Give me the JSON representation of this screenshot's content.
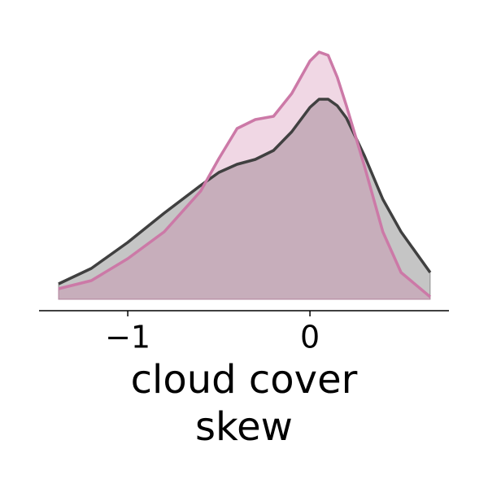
{
  "chart_data": {
    "type": "area",
    "x": [
      -1.38,
      -1.2,
      -1.0,
      -0.8,
      -0.6,
      -0.5,
      -0.4,
      -0.3,
      -0.2,
      -0.1,
      0,
      0.05,
      0.1,
      0.15,
      0.2,
      0.3,
      0.4,
      0.5,
      0.66
    ],
    "series": [
      {
        "color": "#404040",
        "fill": "#bfbfbf",
        "values": [
          0.076,
          0.152,
          0.28,
          0.424,
          0.56,
          0.624,
          0.664,
          0.688,
          0.732,
          0.824,
          0.944,
          0.984,
          0.984,
          0.952,
          0.892,
          0.704,
          0.492,
          0.332,
          0.132
        ]
      },
      {
        "color": "#cc79a7",
        "fill": "#cc79a7",
        "values": [
          0.052,
          0.092,
          0.2,
          0.332,
          0.532,
          0.692,
          0.84,
          0.884,
          0.9,
          1.012,
          1.172,
          1.216,
          1.2,
          1.092,
          0.952,
          0.652,
          0.332,
          0.132,
          0.012
        ]
      }
    ],
    "xlim": [
      -1.487,
      0.763
    ],
    "ylim": [
      -0.056,
      1.272
    ],
    "xticks": [
      {
        "value": -1,
        "label": "−1"
      },
      0
    ],
    "x_label": [
      "cloud cover",
      "skew"
    ]
  }
}
